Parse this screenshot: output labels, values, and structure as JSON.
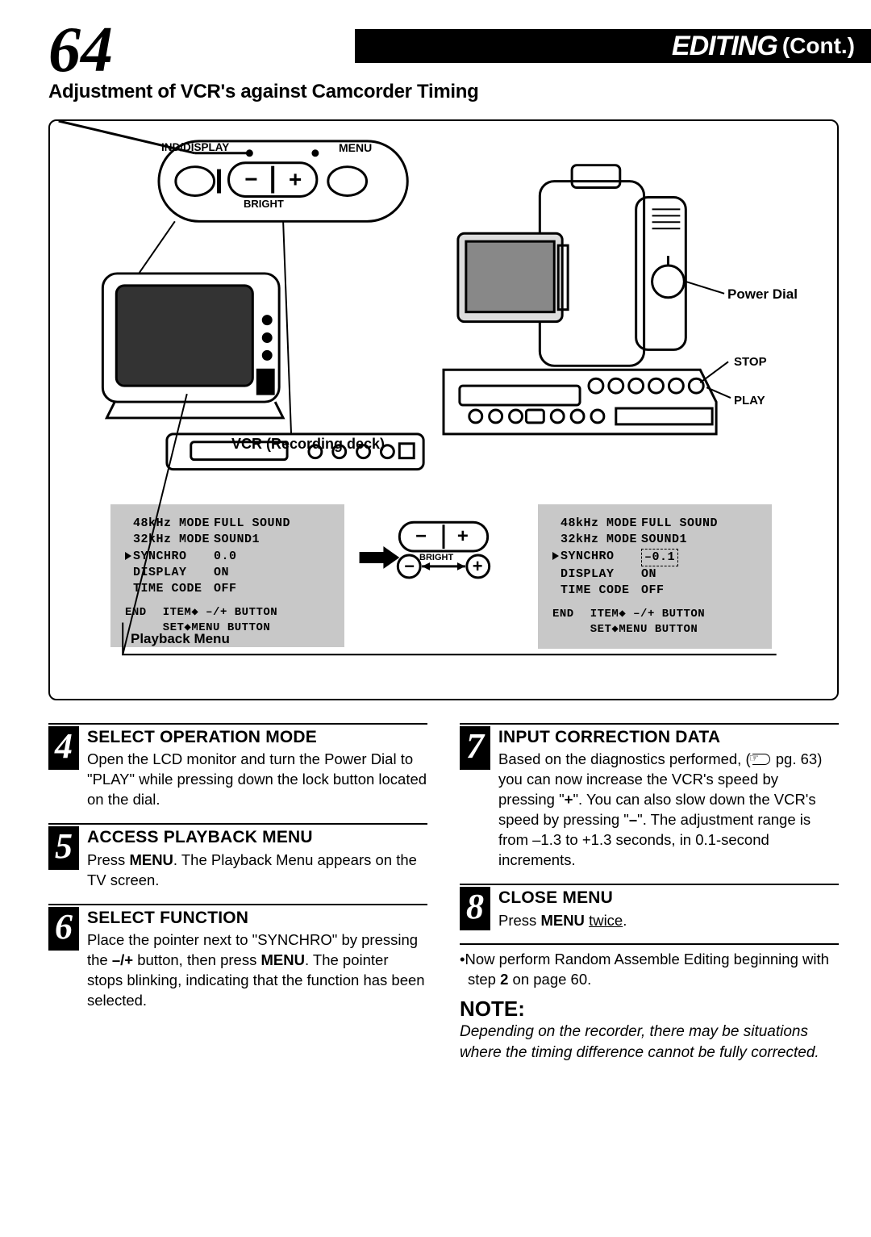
{
  "page_number": "64",
  "header": {
    "title": "EDITING",
    "cont": "(Cont.)"
  },
  "subtitle": "Adjustment of VCR's against Camcorder Timing",
  "diagram": {
    "labels": {
      "ind_display": "IND/DISPLAY",
      "menu": "MENU",
      "bright": "BRIGHT",
      "power_dial": "Power Dial",
      "stop": "STOP",
      "play": "PLAY",
      "vcr": "VCR (Recording deck)"
    },
    "menu_left": {
      "rows": [
        {
          "k": "48kHz MODE",
          "v": "FULL SOUND"
        },
        {
          "k": "32kHz MODE",
          "v": "SOUND1"
        },
        {
          "k": "SYNCHRO",
          "v": "0.0",
          "pointer": true
        },
        {
          "k": "DISPLAY",
          "v": "ON"
        },
        {
          "k": "TIME CODE",
          "v": "OFF"
        }
      ],
      "footer": {
        "end": "END",
        "item": "ITEM◆ –/+ BUTTON",
        "set": "SET◆MENU BUTTON"
      },
      "title": "Playback Menu"
    },
    "menu_right": {
      "rows": [
        {
          "k": "48kHz MODE",
          "v": "FULL SOUND"
        },
        {
          "k": "32kHz MODE",
          "v": "SOUND1"
        },
        {
          "k": "SYNCHRO",
          "v": "–0.1",
          "pointer": true,
          "dashed": true
        },
        {
          "k": "DISPLAY",
          "v": "ON"
        },
        {
          "k": "TIME CODE",
          "v": "OFF"
        }
      ],
      "footer": {
        "end": "END",
        "item": "ITEM◆ –/+ BUTTON",
        "set": "SET◆MENU BUTTON"
      }
    },
    "bright_center": "BRIGHT"
  },
  "steps": {
    "s4": {
      "num": "4",
      "title": "SELECT OPERATION MODE",
      "body": "Open the LCD monitor and turn the Power Dial to \"PLAY\" while pressing down the lock button located on the dial."
    },
    "s5": {
      "num": "5",
      "title": "ACCESS PLAYBACK MENU",
      "body_pre": "Press ",
      "body_bold": "MENU",
      "body_post": ". The Playback Menu appears on the TV screen."
    },
    "s6": {
      "num": "6",
      "title": "SELECT FUNCTION",
      "body_pre": "Place the pointer next to \"SYNCHRO\" by pressing the ",
      "body_b1": "–/+",
      "body_mid": " button, then press ",
      "body_b2": "MENU",
      "body_post": ". The pointer stops blinking, indicating that the function has been selected."
    },
    "s7": {
      "num": "7",
      "title": "INPUT CORRECTION DATA",
      "body_pre": "Based on the diagnostics performed, (",
      "pg_ref": "pg. 63",
      "body_mid1": ") you can now increase the VCR's speed by pressing \"",
      "plus": "+",
      "body_mid2": "\". You can also slow down the VCR's speed by pressing \"",
      "minus": "–",
      "body_post": "\". The adjustment range is from –1.3 to +1.3 seconds, in 0.1-second increments."
    },
    "s8": {
      "num": "8",
      "title": "CLOSE MENU",
      "body_pre": "Press ",
      "body_bold": "MENU",
      "body_post_pre": " ",
      "twice": "twice",
      "body_post": "."
    },
    "bullet": {
      "pre": "•Now perform Random Assemble Editing beginning with step ",
      "step": "2",
      "post": " on page 60."
    }
  },
  "note": {
    "title": "NOTE:",
    "body": "Depending on the recorder, there may be situations where the timing difference cannot be fully corrected."
  }
}
